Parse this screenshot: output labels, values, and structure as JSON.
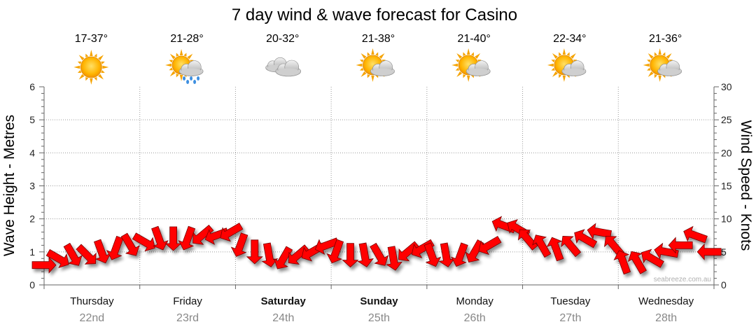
{
  "chart_data": {
    "type": "line",
    "title": "7 day wind & wave forecast for Casino",
    "ylabel_left": "Wave Height - Metres",
    "ylabel_right": "Wind Speed - Knots",
    "ylim_left": [
      0,
      6
    ],
    "ylim_right": [
      0,
      30
    ],
    "yticks_left": [
      "0",
      "1",
      "2",
      "3",
      "4",
      "5",
      "6"
    ],
    "yticks_right": [
      "0",
      "5",
      "10",
      "15",
      "20",
      "25",
      "30"
    ],
    "grid": true,
    "watermark": "seabreeze.com.au",
    "days": [
      {
        "name": "Thursday",
        "date": "22nd",
        "temp": "17-37°",
        "icon": "sunny-icon",
        "bold": false
      },
      {
        "name": "Friday",
        "date": "23rd",
        "temp": "21-28°",
        "icon": "sun-cloud-rain-icon",
        "bold": false
      },
      {
        "name": "Saturday",
        "date": "24th",
        "temp": "20-32°",
        "icon": "cloudy-icon",
        "bold": true
      },
      {
        "name": "Sunday",
        "date": "25th",
        "temp": "21-38°",
        "icon": "partly-cloudy-icon",
        "bold": true
      },
      {
        "name": "Monday",
        "date": "26th",
        "temp": "21-40°",
        "icon": "partly-cloudy-icon",
        "bold": false
      },
      {
        "name": "Tuesday",
        "date": "27th",
        "temp": "22-34°",
        "icon": "partly-cloudy-icon",
        "bold": false
      },
      {
        "name": "Wednesday",
        "date": "28th",
        "temp": "21-36°",
        "icon": "partly-cloudy-icon",
        "bold": false
      }
    ],
    "wind_series": {
      "name": "",
      "color": "#ff0000",
      "points": [
        {
          "t": 0.0,
          "speed": 3.0,
          "dir": 90
        },
        {
          "t": 0.15,
          "speed": 4.0,
          "dir": 120
        },
        {
          "t": 0.3,
          "speed": 4.5,
          "dir": 150
        },
        {
          "t": 0.45,
          "speed": 4.5,
          "dir": 135
        },
        {
          "t": 0.6,
          "speed": 5.0,
          "dir": 160
        },
        {
          "t": 0.75,
          "speed": 5.5,
          "dir": 200
        },
        {
          "t": 0.9,
          "speed": 6.0,
          "dir": 150
        },
        {
          "t": 1.05,
          "speed": 6.5,
          "dir": 120
        },
        {
          "t": 1.2,
          "speed": 7.0,
          "dir": 160
        },
        {
          "t": 1.35,
          "speed": 7.0,
          "dir": 180
        },
        {
          "t": 1.5,
          "speed": 7.0,
          "dir": 200
        },
        {
          "t": 1.65,
          "speed": 7.5,
          "dir": 230
        },
        {
          "t": 1.8,
          "speed": 7.5,
          "dir": 250
        },
        {
          "t": 1.95,
          "speed": 8.0,
          "dir": 240
        },
        {
          "t": 2.05,
          "speed": 6.0,
          "dir": 200
        },
        {
          "t": 2.2,
          "speed": 5.0,
          "dir": 180
        },
        {
          "t": 2.35,
          "speed": 4.5,
          "dir": 170
        },
        {
          "t": 2.5,
          "speed": 4.0,
          "dir": 210
        },
        {
          "t": 2.65,
          "speed": 4.5,
          "dir": 230
        },
        {
          "t": 2.8,
          "speed": 5.0,
          "dir": 240
        },
        {
          "t": 2.95,
          "speed": 6.0,
          "dir": 250
        },
        {
          "t": 3.05,
          "speed": 5.0,
          "dir": 200
        },
        {
          "t": 3.2,
          "speed": 4.5,
          "dir": 180
        },
        {
          "t": 3.35,
          "speed": 4.5,
          "dir": 170
        },
        {
          "t": 3.5,
          "speed": 4.5,
          "dir": 150
        },
        {
          "t": 3.65,
          "speed": 4.0,
          "dir": 170
        },
        {
          "t": 3.8,
          "speed": 5.0,
          "dir": 230
        },
        {
          "t": 3.95,
          "speed": 5.5,
          "dir": 240
        },
        {
          "t": 4.05,
          "speed": 4.5,
          "dir": 160
        },
        {
          "t": 4.2,
          "speed": 4.5,
          "dir": 170
        },
        {
          "t": 4.35,
          "speed": 4.5,
          "dir": 200
        },
        {
          "t": 4.5,
          "speed": 5.0,
          "dir": 210
        },
        {
          "t": 4.65,
          "speed": 6.0,
          "dir": 240
        },
        {
          "t": 4.8,
          "speed": 9.0,
          "dir": 290
        },
        {
          "t": 4.95,
          "speed": 8.5,
          "dir": 300
        },
        {
          "t": 5.05,
          "speed": 7.0,
          "dir": 320
        },
        {
          "t": 5.2,
          "speed": 6.0,
          "dir": 330
        },
        {
          "t": 5.35,
          "speed": 5.5,
          "dir": 340
        },
        {
          "t": 5.5,
          "speed": 6.0,
          "dir": 320
        },
        {
          "t": 5.65,
          "speed": 7.0,
          "dir": 300
        },
        {
          "t": 5.8,
          "speed": 8.0,
          "dir": 280
        },
        {
          "t": 5.95,
          "speed": 6.0,
          "dir": 320
        },
        {
          "t": 6.05,
          "speed": 3.5,
          "dir": 340
        },
        {
          "t": 6.2,
          "speed": 3.5,
          "dir": 330
        },
        {
          "t": 6.35,
          "speed": 4.0,
          "dir": 300
        },
        {
          "t": 6.5,
          "speed": 5.0,
          "dir": 280
        },
        {
          "t": 6.65,
          "speed": 6.0,
          "dir": 270
        },
        {
          "t": 6.8,
          "speed": 7.5,
          "dir": 290
        },
        {
          "t": 6.95,
          "speed": 5.0,
          "dir": 270
        }
      ]
    }
  }
}
